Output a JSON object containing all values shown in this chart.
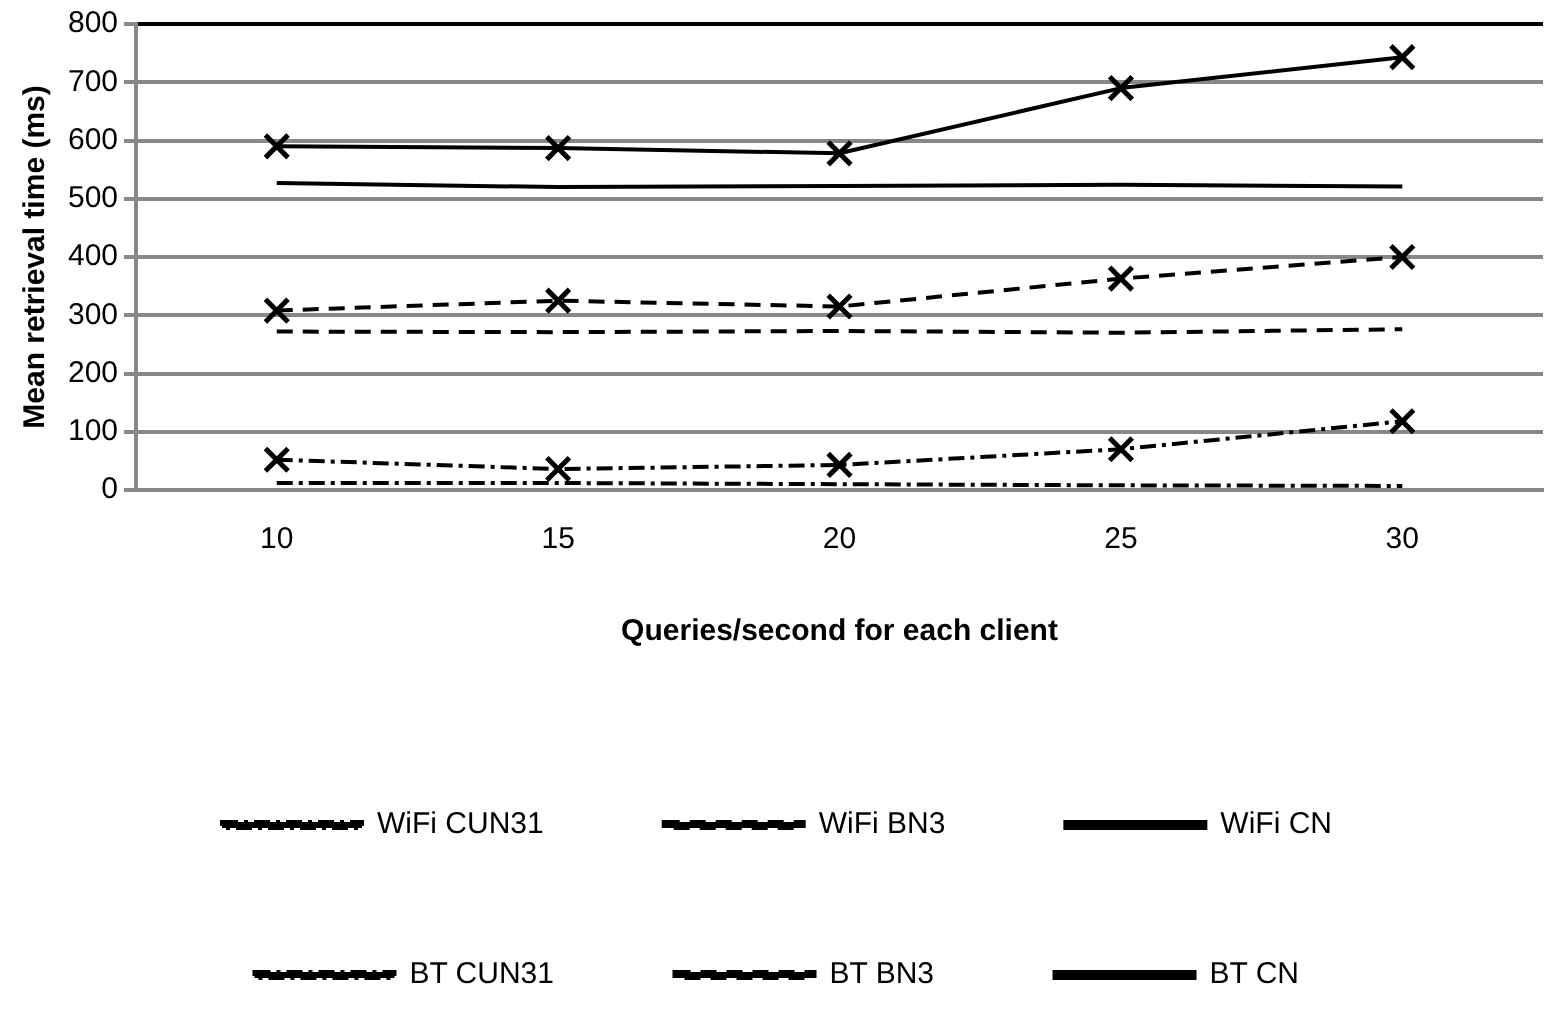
{
  "chart_data": {
    "type": "line",
    "xlabel": "Queries/second for each client",
    "ylabel": "Mean retrieval time (ms)",
    "categories": [
      "10",
      "15",
      "20",
      "25",
      "30"
    ],
    "ylim": [
      0,
      800
    ],
    "yticks": [
      0,
      100,
      200,
      300,
      400,
      500,
      600,
      700,
      800
    ],
    "grid": "y",
    "legend": "bottom",
    "series": [
      {
        "name": "WiFi CUN31",
        "color": "#000000",
        "line_style": "dotted",
        "marker": "none",
        "values": [
          12,
          12,
          10,
          8,
          7
        ]
      },
      {
        "name": "WiFi BN3",
        "color": "#000000",
        "line_style": "dashed",
        "marker": "none",
        "values": [
          272,
          271,
          273,
          270,
          276
        ]
      },
      {
        "name": "WiFi CN",
        "color": "#000000",
        "line_style": "solid",
        "marker": "none",
        "values": [
          527,
          520,
          522,
          524,
          521
        ]
      },
      {
        "name": "BT CUN31",
        "color": "#000000",
        "line_style": "dotted",
        "marker": "cross",
        "values": [
          52,
          36,
          43,
          70,
          118
        ]
      },
      {
        "name": "BT BN3",
        "color": "#000000",
        "line_style": "dashed",
        "marker": "cross",
        "values": [
          308,
          325,
          315,
          363,
          400
        ]
      },
      {
        "name": "BT CN",
        "color": "#000000",
        "line_style": "solid",
        "marker": "cross",
        "values": [
          590,
          587,
          578,
          690,
          743
        ]
      }
    ]
  }
}
